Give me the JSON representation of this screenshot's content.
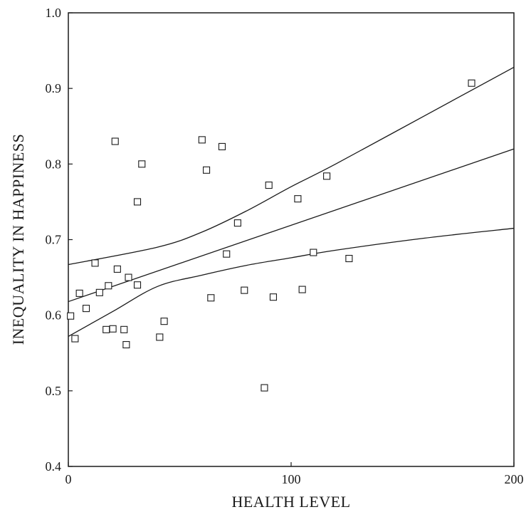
{
  "chart_data": {
    "type": "scatter",
    "title": "",
    "xlabel": "HEALTH LEVEL",
    "ylabel": "INEQUALITY IN HAPPINESS",
    "xlim": [
      0,
      200
    ],
    "ylim": [
      0.4,
      1.0
    ],
    "x_ticks": [
      0,
      100,
      200
    ],
    "x_tick_labels": [
      "0",
      "100",
      "200"
    ],
    "y_ticks": [
      0.4,
      0.5,
      0.6,
      0.7,
      0.8,
      0.9,
      1.0
    ],
    "y_tick_labels": [
      "0.4",
      "0.5",
      "0.6",
      "0.7",
      "0.8",
      "0.9",
      "1.0"
    ],
    "grid": false,
    "marker": "open-square",
    "points": [
      {
        "x": 1,
        "y": 0.599
      },
      {
        "x": 3,
        "y": 0.569
      },
      {
        "x": 5,
        "y": 0.629
      },
      {
        "x": 8,
        "y": 0.609
      },
      {
        "x": 12,
        "y": 0.669
      },
      {
        "x": 14,
        "y": 0.63
      },
      {
        "x": 17,
        "y": 0.581
      },
      {
        "x": 18,
        "y": 0.639
      },
      {
        "x": 20,
        "y": 0.582
      },
      {
        "x": 21,
        "y": 0.83
      },
      {
        "x": 22,
        "y": 0.661
      },
      {
        "x": 25,
        "y": 0.581
      },
      {
        "x": 26,
        "y": 0.561
      },
      {
        "x": 27,
        "y": 0.65
      },
      {
        "x": 31,
        "y": 0.75
      },
      {
        "x": 31,
        "y": 0.64
      },
      {
        "x": 33,
        "y": 0.8
      },
      {
        "x": 41,
        "y": 0.571
      },
      {
        "x": 43,
        "y": 0.592
      },
      {
        "x": 60,
        "y": 0.832
      },
      {
        "x": 62,
        "y": 0.792
      },
      {
        "x": 64,
        "y": 0.623
      },
      {
        "x": 69,
        "y": 0.823
      },
      {
        "x": 71,
        "y": 0.681
      },
      {
        "x": 76,
        "y": 0.722
      },
      {
        "x": 79,
        "y": 0.633
      },
      {
        "x": 88,
        "y": 0.504
      },
      {
        "x": 90,
        "y": 0.772
      },
      {
        "x": 92,
        "y": 0.624
      },
      {
        "x": 103,
        "y": 0.754
      },
      {
        "x": 105,
        "y": 0.634
      },
      {
        "x": 110,
        "y": 0.683
      },
      {
        "x": 116,
        "y": 0.784
      },
      {
        "x": 126,
        "y": 0.675
      },
      {
        "x": 181,
        "y": 0.907
      }
    ],
    "series": [
      {
        "role": "regression-line",
        "x": [
          0,
          200
        ],
        "y": [
          0.618,
          0.82
        ]
      },
      {
        "role": "upper-confidence-band",
        "x": [
          0,
          40,
          60,
          80,
          100,
          120,
          160,
          200
        ],
        "y": [
          0.667,
          0.69,
          0.71,
          0.738,
          0.77,
          0.8,
          0.864,
          0.928
        ]
      },
      {
        "role": "lower-confidence-band",
        "x": [
          0,
          20,
          40,
          60,
          80,
          100,
          120,
          160,
          200
        ],
        "y": [
          0.572,
          0.605,
          0.638,
          0.653,
          0.666,
          0.676,
          0.686,
          0.702,
          0.715
        ]
      }
    ]
  }
}
